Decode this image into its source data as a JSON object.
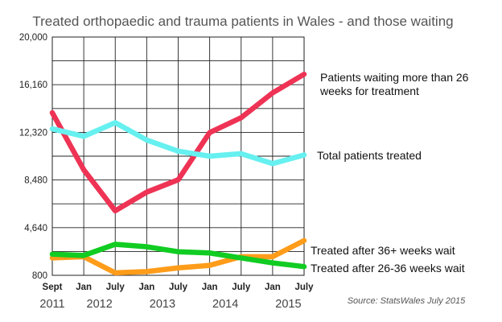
{
  "chart_data": {
    "type": "line",
    "title": "Treated orthopaedic and trauma patients in Wales  - and those waiting",
    "source": "Source: StatsWales July 2015",
    "categories": [
      "Sept",
      "Jan",
      "July",
      "Jan",
      "July",
      "Jan",
      "July",
      "Jan",
      "July"
    ],
    "years": [
      "2011",
      "2012",
      "2013",
      "2014",
      "2015"
    ],
    "yticks": [
      800,
      4640,
      8480,
      12320,
      16160,
      20000
    ],
    "ytick_labels": [
      "800",
      "4,640",
      "8,480",
      "12,320",
      "16,160",
      "20,000"
    ],
    "ylim": [
      800,
      20000
    ],
    "grid": true,
    "series": [
      {
        "name": "Patients waiting more than 26 weeks for treatment",
        "color": "#ee3355",
        "values": [
          13900,
          9300,
          6000,
          7500,
          8500,
          12300,
          13500,
          15500,
          17000
        ]
      },
      {
        "name": "Total patients treated",
        "color": "#66f0f0",
        "values": [
          12600,
          12000,
          13100,
          11700,
          10800,
          10400,
          10600,
          9800,
          10500
        ]
      },
      {
        "name": "Treated after 36+ weeks wait",
        "color": "#ff9c1a",
        "values": [
          2200,
          2300,
          1000,
          1100,
          1400,
          1600,
          2300,
          2300,
          3600
        ]
      },
      {
        "name": "Treated after 26-36 weeks wait",
        "color": "#11cc22",
        "values": [
          2500,
          2400,
          3300,
          3100,
          2700,
          2600,
          2200,
          1800,
          1500
        ]
      }
    ]
  }
}
